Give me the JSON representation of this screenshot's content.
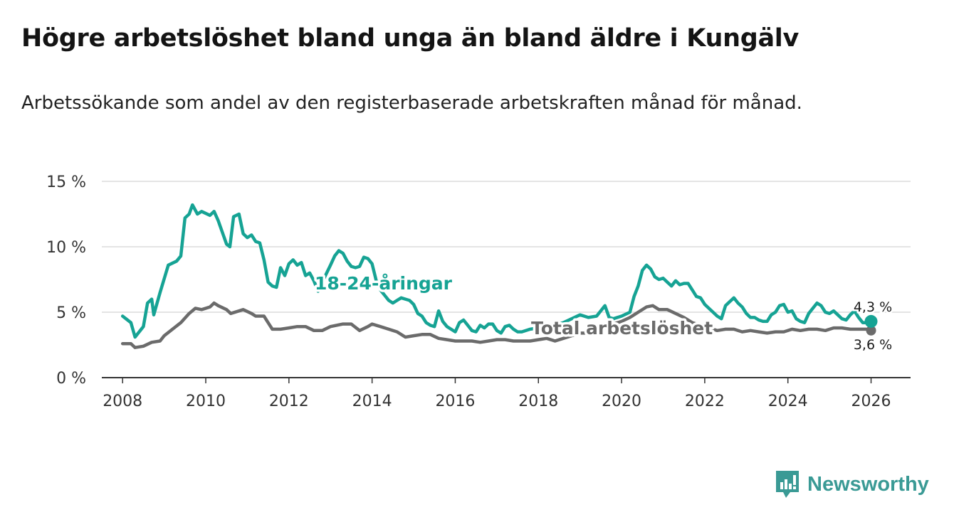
{
  "header": {
    "title": "Högre arbetslöshet bland unga än bland äldre i Kungälv",
    "subtitle": "Arbetssökande som andel av den registerbaserade arbetskraften månad för månad."
  },
  "brand": {
    "name": "Newsworthy",
    "icon": "newsworthy-logo-icon",
    "color": "#3a9a95"
  },
  "chart_data": {
    "type": "line",
    "title": "Högre arbetslöshet bland unga än bland äldre i Kungälv",
    "subtitle": "Arbetssökande som andel av den registerbaserade arbetskraften månad för månad.",
    "xlabel": "",
    "ylabel": "",
    "xlim": [
      2007.5,
      2026.95
    ],
    "ylim": [
      0,
      15
    ],
    "grid": true,
    "x_ticks": [
      2008,
      2010,
      2012,
      2014,
      2016,
      2018,
      2020,
      2022,
      2024,
      2026
    ],
    "x_tick_labels": [
      "2008",
      "2010",
      "2012",
      "2014",
      "2016",
      "2018",
      "2020",
      "2022",
      "2024",
      "2026"
    ],
    "y_ticks": [
      0,
      5,
      10,
      15
    ],
    "y_tick_labels": [
      "0 %",
      "5 %",
      "10 %",
      "15 %"
    ],
    "series": [
      {
        "name": "18-24-åringar",
        "label": "18-24-åringar",
        "color": "#16a394",
        "end_label": "4,3 %",
        "points": [
          [
            2008.0,
            4.7
          ],
          [
            2008.2,
            4.2
          ],
          [
            2008.3,
            3.1
          ],
          [
            2008.5,
            3.9
          ],
          [
            2008.6,
            5.7
          ],
          [
            2008.7,
            6.0
          ],
          [
            2008.75,
            4.8
          ],
          [
            2008.9,
            6.5
          ],
          [
            2009.1,
            8.6
          ],
          [
            2009.3,
            8.9
          ],
          [
            2009.4,
            9.3
          ],
          [
            2009.5,
            12.2
          ],
          [
            2009.6,
            12.5
          ],
          [
            2009.68,
            13.2
          ],
          [
            2009.8,
            12.5
          ],
          [
            2009.9,
            12.7
          ],
          [
            2010.1,
            12.4
          ],
          [
            2010.2,
            12.7
          ],
          [
            2010.3,
            12.0
          ],
          [
            2010.5,
            10.2
          ],
          [
            2010.58,
            10.0
          ],
          [
            2010.67,
            12.3
          ],
          [
            2010.8,
            12.5
          ],
          [
            2010.9,
            11.0
          ],
          [
            2011.0,
            10.7
          ],
          [
            2011.1,
            10.9
          ],
          [
            2011.2,
            10.4
          ],
          [
            2011.3,
            10.3
          ],
          [
            2011.4,
            9.0
          ],
          [
            2011.5,
            7.3
          ],
          [
            2011.6,
            7.0
          ],
          [
            2011.7,
            6.9
          ],
          [
            2011.8,
            8.4
          ],
          [
            2011.9,
            7.8
          ],
          [
            2012.0,
            8.7
          ],
          [
            2012.1,
            9.0
          ],
          [
            2012.2,
            8.6
          ],
          [
            2012.3,
            8.8
          ],
          [
            2012.4,
            7.8
          ],
          [
            2012.5,
            8.0
          ],
          [
            2012.6,
            7.4
          ],
          [
            2012.7,
            6.6
          ],
          [
            2012.8,
            7.3
          ],
          [
            2013.0,
            8.6
          ],
          [
            2013.1,
            9.3
          ],
          [
            2013.2,
            9.7
          ],
          [
            2013.3,
            9.5
          ],
          [
            2013.4,
            8.9
          ],
          [
            2013.5,
            8.5
          ],
          [
            2013.6,
            8.4
          ],
          [
            2013.7,
            8.5
          ],
          [
            2013.8,
            9.2
          ],
          [
            2013.9,
            9.1
          ],
          [
            2014.0,
            8.7
          ],
          [
            2014.1,
            7.4
          ],
          [
            2014.2,
            6.7
          ],
          [
            2014.3,
            6.3
          ],
          [
            2014.4,
            5.9
          ],
          [
            2014.5,
            5.7
          ],
          [
            2014.6,
            5.9
          ],
          [
            2014.7,
            6.1
          ],
          [
            2014.8,
            6.0
          ],
          [
            2014.9,
            5.9
          ],
          [
            2015.0,
            5.6
          ],
          [
            2015.1,
            4.9
          ],
          [
            2015.2,
            4.7
          ],
          [
            2015.3,
            4.2
          ],
          [
            2015.4,
            4.0
          ],
          [
            2015.5,
            3.9
          ],
          [
            2015.6,
            5.1
          ],
          [
            2015.7,
            4.3
          ],
          [
            2015.8,
            3.9
          ],
          [
            2015.9,
            3.7
          ],
          [
            2016.0,
            3.5
          ],
          [
            2016.1,
            4.2
          ],
          [
            2016.2,
            4.4
          ],
          [
            2016.3,
            4.0
          ],
          [
            2016.4,
            3.6
          ],
          [
            2016.5,
            3.5
          ],
          [
            2016.6,
            4.0
          ],
          [
            2016.7,
            3.8
          ],
          [
            2016.8,
            4.1
          ],
          [
            2016.9,
            4.1
          ],
          [
            2017.0,
            3.6
          ],
          [
            2017.1,
            3.4
          ],
          [
            2017.2,
            3.9
          ],
          [
            2017.3,
            4.0
          ],
          [
            2017.4,
            3.7
          ],
          [
            2017.5,
            3.5
          ],
          [
            2017.6,
            3.5
          ],
          [
            2017.8,
            3.7
          ],
          [
            2018.0,
            3.8
          ],
          [
            2018.2,
            3.9
          ],
          [
            2018.4,
            4.0
          ],
          [
            2018.6,
            4.2
          ],
          [
            2018.8,
            4.5
          ],
          [
            2019.0,
            4.8
          ],
          [
            2019.2,
            4.6
          ],
          [
            2019.4,
            4.7
          ],
          [
            2019.6,
            5.5
          ],
          [
            2019.7,
            4.6
          ],
          [
            2019.8,
            4.5
          ],
          [
            2020.0,
            4.7
          ],
          [
            2020.2,
            5.0
          ],
          [
            2020.3,
            6.2
          ],
          [
            2020.4,
            7.0
          ],
          [
            2020.5,
            8.2
          ],
          [
            2020.6,
            8.6
          ],
          [
            2020.7,
            8.3
          ],
          [
            2020.8,
            7.7
          ],
          [
            2020.9,
            7.5
          ],
          [
            2021.0,
            7.6
          ],
          [
            2021.1,
            7.3
          ],
          [
            2021.2,
            7.0
          ],
          [
            2021.3,
            7.4
          ],
          [
            2021.4,
            7.1
          ],
          [
            2021.5,
            7.2
          ],
          [
            2021.6,
            7.2
          ],
          [
            2021.7,
            6.7
          ],
          [
            2021.8,
            6.2
          ],
          [
            2021.9,
            6.1
          ],
          [
            2022.0,
            5.6
          ],
          [
            2022.1,
            5.3
          ],
          [
            2022.2,
            5.0
          ],
          [
            2022.3,
            4.7
          ],
          [
            2022.4,
            4.5
          ],
          [
            2022.5,
            5.5
          ],
          [
            2022.6,
            5.8
          ],
          [
            2022.7,
            6.1
          ],
          [
            2022.8,
            5.7
          ],
          [
            2022.9,
            5.4
          ],
          [
            2023.0,
            4.9
          ],
          [
            2023.1,
            4.6
          ],
          [
            2023.2,
            4.6
          ],
          [
            2023.3,
            4.4
          ],
          [
            2023.4,
            4.3
          ],
          [
            2023.5,
            4.3
          ],
          [
            2023.6,
            4.8
          ],
          [
            2023.7,
            5.0
          ],
          [
            2023.8,
            5.5
          ],
          [
            2023.9,
            5.6
          ],
          [
            2024.0,
            5.0
          ],
          [
            2024.1,
            5.1
          ],
          [
            2024.2,
            4.5
          ],
          [
            2024.3,
            4.3
          ],
          [
            2024.4,
            4.2
          ],
          [
            2024.5,
            4.9
          ],
          [
            2024.6,
            5.3
          ],
          [
            2024.7,
            5.7
          ],
          [
            2024.8,
            5.5
          ],
          [
            2024.9,
            5.0
          ],
          [
            2025.0,
            4.9
          ],
          [
            2025.1,
            5.1
          ],
          [
            2025.2,
            4.8
          ],
          [
            2025.3,
            4.5
          ],
          [
            2025.4,
            4.4
          ],
          [
            2025.5,
            4.8
          ],
          [
            2025.6,
            5.1
          ],
          [
            2025.7,
            4.6
          ],
          [
            2025.8,
            4.2
          ],
          [
            2025.9,
            4.2
          ],
          [
            2026.0,
            4.3
          ]
        ]
      },
      {
        "name": "Total arbetslöshet",
        "label": "Total arbetslöshet",
        "color": "#6b6b6b",
        "end_label": "3,6 %",
        "points": [
          [
            2008.0,
            2.6
          ],
          [
            2008.2,
            2.6
          ],
          [
            2008.3,
            2.3
          ],
          [
            2008.5,
            2.4
          ],
          [
            2008.7,
            2.7
          ],
          [
            2008.9,
            2.8
          ],
          [
            2009.0,
            3.2
          ],
          [
            2009.2,
            3.7
          ],
          [
            2009.4,
            4.2
          ],
          [
            2009.6,
            4.9
          ],
          [
            2009.75,
            5.3
          ],
          [
            2009.9,
            5.2
          ],
          [
            2010.1,
            5.4
          ],
          [
            2010.2,
            5.7
          ],
          [
            2010.3,
            5.5
          ],
          [
            2010.5,
            5.2
          ],
          [
            2010.6,
            4.9
          ],
          [
            2010.8,
            5.1
          ],
          [
            2010.9,
            5.2
          ],
          [
            2011.1,
            4.9
          ],
          [
            2011.2,
            4.7
          ],
          [
            2011.4,
            4.7
          ],
          [
            2011.5,
            4.2
          ],
          [
            2011.6,
            3.7
          ],
          [
            2011.8,
            3.7
          ],
          [
            2012.0,
            3.8
          ],
          [
            2012.2,
            3.9
          ],
          [
            2012.4,
            3.9
          ],
          [
            2012.6,
            3.6
          ],
          [
            2012.8,
            3.6
          ],
          [
            2013.0,
            3.9
          ],
          [
            2013.3,
            4.1
          ],
          [
            2013.5,
            4.1
          ],
          [
            2013.7,
            3.6
          ],
          [
            2013.9,
            3.9
          ],
          [
            2014.0,
            4.1
          ],
          [
            2014.2,
            3.9
          ],
          [
            2014.4,
            3.7
          ],
          [
            2014.6,
            3.5
          ],
          [
            2014.8,
            3.1
          ],
          [
            2015.0,
            3.2
          ],
          [
            2015.2,
            3.3
          ],
          [
            2015.4,
            3.3
          ],
          [
            2015.6,
            3.0
          ],
          [
            2015.8,
            2.9
          ],
          [
            2016.0,
            2.8
          ],
          [
            2016.2,
            2.8
          ],
          [
            2016.4,
            2.8
          ],
          [
            2016.6,
            2.7
          ],
          [
            2016.8,
            2.8
          ],
          [
            2017.0,
            2.9
          ],
          [
            2017.2,
            2.9
          ],
          [
            2017.4,
            2.8
          ],
          [
            2017.6,
            2.8
          ],
          [
            2017.8,
            2.8
          ],
          [
            2018.0,
            2.9
          ],
          [
            2018.2,
            3.0
          ],
          [
            2018.4,
            2.8
          ],
          [
            2018.6,
            3.0
          ],
          [
            2018.8,
            3.2
          ],
          [
            2019.0,
            3.4
          ],
          [
            2019.2,
            3.4
          ],
          [
            2019.4,
            3.6
          ],
          [
            2019.6,
            3.8
          ],
          [
            2019.8,
            4.1
          ],
          [
            2020.0,
            4.3
          ],
          [
            2020.2,
            4.6
          ],
          [
            2020.4,
            5.0
          ],
          [
            2020.6,
            5.4
          ],
          [
            2020.75,
            5.5
          ],
          [
            2020.9,
            5.2
          ],
          [
            2021.1,
            5.2
          ],
          [
            2021.3,
            4.9
          ],
          [
            2021.5,
            4.6
          ],
          [
            2021.7,
            4.2
          ],
          [
            2021.9,
            4.0
          ],
          [
            2022.1,
            3.8
          ],
          [
            2022.3,
            3.6
          ],
          [
            2022.5,
            3.7
          ],
          [
            2022.7,
            3.7
          ],
          [
            2022.9,
            3.5
          ],
          [
            2023.1,
            3.6
          ],
          [
            2023.3,
            3.5
          ],
          [
            2023.5,
            3.4
          ],
          [
            2023.7,
            3.5
          ],
          [
            2023.9,
            3.5
          ],
          [
            2024.1,
            3.7
          ],
          [
            2024.3,
            3.6
          ],
          [
            2024.5,
            3.7
          ],
          [
            2024.7,
            3.7
          ],
          [
            2024.9,
            3.6
          ],
          [
            2025.1,
            3.8
          ],
          [
            2025.3,
            3.8
          ],
          [
            2025.5,
            3.7
          ],
          [
            2025.7,
            3.7
          ],
          [
            2025.9,
            3.7
          ],
          [
            2026.0,
            3.6
          ]
        ]
      }
    ]
  }
}
